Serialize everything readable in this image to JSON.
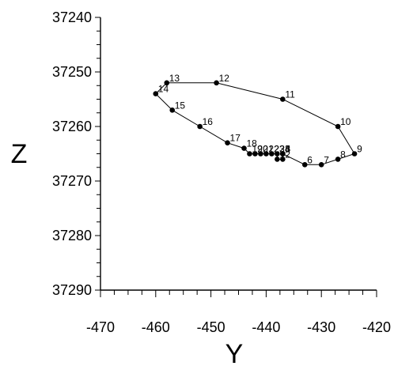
{
  "chart_data": {
    "type": "scatter",
    "title": "",
    "xlabel": "Y",
    "ylabel": "Z",
    "xlim": [
      -470,
      -420
    ],
    "ylim": [
      37240,
      37290
    ],
    "y_inverted": true,
    "xticks": [
      -470,
      -460,
      -450,
      -440,
      -430,
      -420
    ],
    "yticks": [
      37240,
      37250,
      37260,
      37270,
      37280,
      37290
    ],
    "x_minor_step": 2.5,
    "y_minor_step": 2.5,
    "connected": true,
    "closed": true,
    "points": [
      {
        "label": "1",
        "x": -438,
        "y": 37266
      },
      {
        "label": "2",
        "x": -437,
        "y": 37266
      },
      {
        "label": "3",
        "x": -437,
        "y": 37265
      },
      {
        "label": "4",
        "x": -437,
        "y": 37265
      },
      {
        "label": "5",
        "x": -437,
        "y": 37265
      },
      {
        "label": "6",
        "x": -433,
        "y": 37267
      },
      {
        "label": "7",
        "x": -430,
        "y": 37267
      },
      {
        "label": "8",
        "x": -427,
        "y": 37266
      },
      {
        "label": "9",
        "x": -424,
        "y": 37265
      },
      {
        "label": "10",
        "x": -427,
        "y": 37260
      },
      {
        "label": "11",
        "x": -437,
        "y": 37255
      },
      {
        "label": "12",
        "x": -449,
        "y": 37252
      },
      {
        "label": "13",
        "x": -458,
        "y": 37252
      },
      {
        "label": "14",
        "x": -460,
        "y": 37254
      },
      {
        "label": "15",
        "x": -457,
        "y": 37257
      },
      {
        "label": "16",
        "x": -452,
        "y": 37260
      },
      {
        "label": "17",
        "x": -447,
        "y": 37263
      },
      {
        "label": "18",
        "x": -444,
        "y": 37264
      },
      {
        "label": "19",
        "x": -443,
        "y": 37265
      },
      {
        "label": "20",
        "x": -442,
        "y": 37265
      },
      {
        "label": "21",
        "x": -441,
        "y": 37265
      },
      {
        "label": "22",
        "x": -440,
        "y": 37265
      },
      {
        "label": "23",
        "x": -439,
        "y": 37265
      },
      {
        "label": "24",
        "x": -438,
        "y": 37265
      }
    ]
  }
}
